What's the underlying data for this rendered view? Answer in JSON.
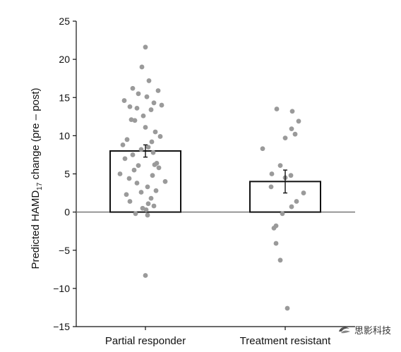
{
  "chart_data": {
    "type": "bar",
    "categories": [
      "Partial responder",
      "Treatment resistant"
    ],
    "values": [
      8.0,
      4.0
    ],
    "errors": [
      0.8,
      1.5
    ],
    "ylabel_parts": [
      "Predicted HAMD",
      "17",
      " change (pre – post)"
    ],
    "ylim": [
      -15,
      25
    ],
    "yticks": [
      25,
      20,
      15,
      10,
      5,
      0,
      -5,
      -10,
      -15
    ],
    "ytick_labels": [
      "25",
      "20",
      "15",
      "10",
      "5",
      "0",
      "−5",
      "−10",
      "−15"
    ],
    "grid": false,
    "points": [
      [
        21.6,
        19.0,
        17.2,
        16.2,
        15.9,
        15.5,
        15.1,
        14.6,
        14.3,
        14.0,
        13.8,
        13.6,
        13.4,
        12.6,
        12.1,
        12.0,
        11.1,
        10.5,
        9.9,
        9.5,
        9.2,
        8.8,
        8.5,
        8.2,
        7.8,
        7.5,
        7.0,
        6.4,
        6.2,
        6.1,
        5.8,
        5.5,
        5.0,
        4.8,
        4.4,
        4.0,
        3.8,
        3.3,
        2.8,
        2.6,
        2.3,
        1.8,
        1.4,
        1.1,
        0.8,
        0.5,
        0.3,
        -0.2,
        -0.4,
        -8.3
      ],
      [
        13.5,
        13.2,
        11.9,
        10.9,
        10.2,
        9.7,
        8.3,
        6.1,
        5.0,
        4.8,
        4.5,
        3.3,
        2.5,
        1.4,
        0.7,
        -0.2,
        -1.8,
        -2.1,
        -4.1,
        -6.3,
        -12.6
      ]
    ],
    "point_offsets": [
      [
        0.0,
        -0.05,
        0.05,
        -0.18,
        0.18,
        -0.1,
        0.02,
        -0.3,
        0.12,
        0.23,
        -0.22,
        -0.12,
        0.08,
        -0.03,
        -0.2,
        -0.15,
        0.0,
        0.14,
        0.21,
        -0.26,
        0.09,
        -0.32,
        0.04,
        -0.06,
        0.11,
        -0.18,
        -0.29,
        0.16,
        0.13,
        -0.1,
        0.19,
        -0.16,
        -0.36,
        0.1,
        -0.23,
        0.28,
        -0.12,
        0.03,
        0.15,
        -0.06,
        -0.27,
        0.08,
        -0.22,
        0.04,
        0.12,
        -0.04,
        0.01,
        -0.14,
        0.03,
        0.0
      ],
      [
        -0.12,
        0.1,
        0.19,
        0.09,
        0.14,
        0.0,
        -0.32,
        -0.07,
        -0.19,
        0.08,
        0.0,
        -0.2,
        0.26,
        0.16,
        0.09,
        -0.04,
        -0.13,
        -0.16,
        -0.13,
        -0.07,
        0.03
      ]
    ]
  },
  "watermark": {
    "text": "思影科技",
    "icon": "swirl-logo-icon"
  }
}
